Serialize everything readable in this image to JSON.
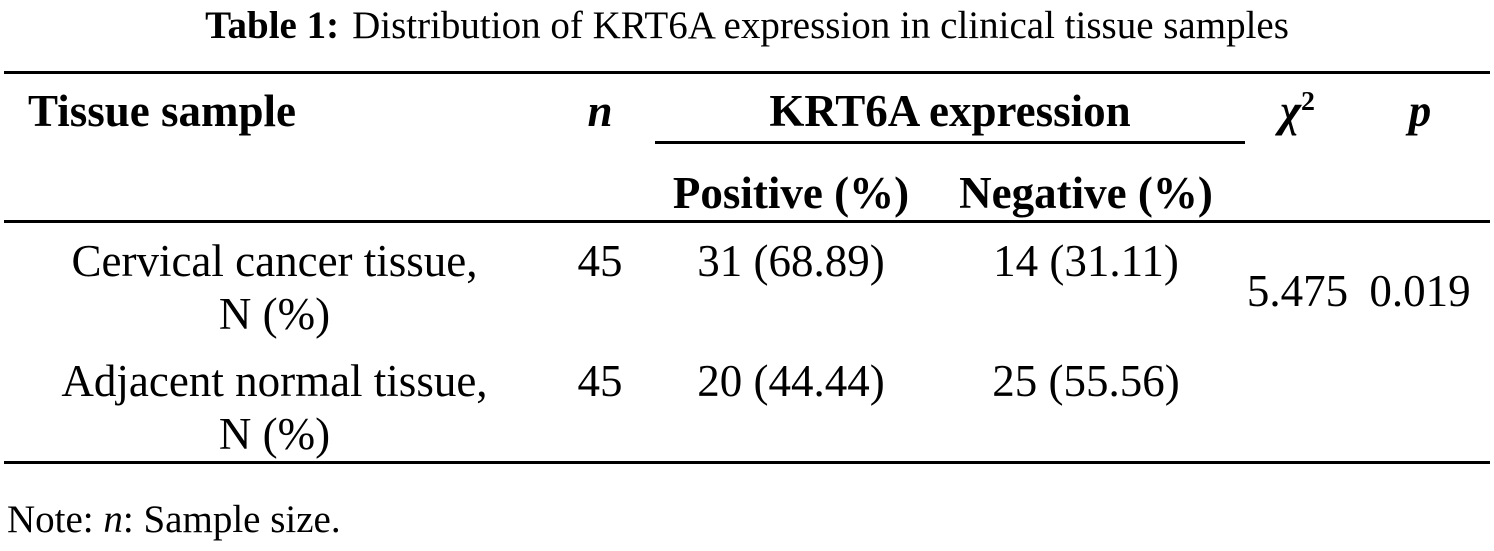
{
  "title": {
    "label": "Table 1:",
    "text": "Distribution of KRT6A expression in clinical tissue samples"
  },
  "table": {
    "headers": {
      "tissue": "Tissue sample",
      "n": "n",
      "group": "KRT6A expression",
      "positive": "Positive (%)",
      "negative": "Negative (%)",
      "chi": "χ",
      "chi_sup": "2",
      "p": "p"
    },
    "rows": [
      {
        "tissue_line1": "Cervical cancer tissue,",
        "tissue_line2": "N (%)",
        "n": "45",
        "positive": "31 (68.89)",
        "negative": "14 (31.11)"
      },
      {
        "tissue_line1": "Adjacent normal tissue,",
        "tissue_line2": "N (%)",
        "n": "45",
        "positive": "20 (44.44)",
        "negative": "25 (55.56)"
      }
    ],
    "chi_value": "5.475",
    "p_value": "0.019"
  },
  "note": {
    "prefix": "Note: ",
    "symbol": "n",
    "text": ": Sample size."
  },
  "colors": {
    "text": "#000000",
    "background": "#ffffff",
    "rule": "#000000"
  },
  "chart_data": {
    "type": "table",
    "title": "Table 1: Distribution of KRT6A expression in clinical tissue samples",
    "columns": [
      "Tissue sample",
      "n",
      "KRT6A expression Positive (%)",
      "KRT6A expression Negative (%)",
      "χ2",
      "p"
    ],
    "rows": [
      [
        "Cervical cancer tissue, N (%)",
        45,
        "31 (68.89)",
        "14 (31.11)",
        5.475,
        0.019
      ],
      [
        "Adjacent normal tissue, N (%)",
        45,
        "20 (44.44)",
        "25 (55.56)",
        null,
        null
      ]
    ],
    "note": "Note: n: Sample size."
  }
}
